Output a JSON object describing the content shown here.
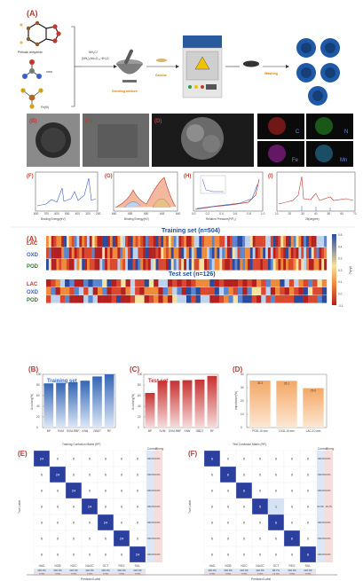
{
  "panelA": {
    "label": "(A)",
    "phthalic": "Phthalic anhydride",
    "urea": "urea",
    "fe": "Fe(III)",
    "reagent1": "NH₄Cl",
    "reagent2": "(NH₄)₆Mo₇O₂₄·4H₂O",
    "grinding": "Grinding mixture",
    "calcine": "Calcine",
    "washing": "Washing"
  },
  "panelsBD": {
    "b": "(B)",
    "c": "(C)",
    "d": "(D)"
  },
  "elements": {
    "c": "C",
    "n": "N",
    "fe": "Fe",
    "mn": "Mn"
  },
  "panelF": {
    "label": "(F)",
    "xlabel": "Binding Energy(eV)",
    "ylabel": "Intensity (a.u.)",
    "ticks": [
      "800",
      "700",
      "600",
      "500",
      "400",
      "300",
      "200"
    ]
  },
  "panelG": {
    "label": "(G)",
    "xlabel": "Binding Energy(eV)",
    "ylabel": "Intensity (a.u.)",
    "ticks": [
      "660",
      "655",
      "650",
      "645",
      "640"
    ]
  },
  "panelH": {
    "label": "(H)",
    "xlabel": "Relative Pressure(P/P₀)",
    "ylabel": "Pore volume(cm³/g)",
    "ticks": [
      "0.0",
      "0.2",
      "0.4",
      "0.6",
      "0.8",
      "1.0"
    ]
  },
  "panelI": {
    "label": "(I)",
    "xlabel": "2θ(degree)",
    "ylabel": "Intensity (a.u.)",
    "ticks": [
      "10",
      "20",
      "30",
      "40",
      "50",
      "60",
      "70"
    ]
  },
  "heatmap": {
    "label": "(A)",
    "train_title": "Training set (n=504)",
    "test_title": "Test set (n=126)",
    "rows": [
      "LAC",
      "OXD",
      "POD"
    ],
    "colorbar_label": "(A-A₀)",
    "colorbar_ticks": [
      "0.5",
      "0.4",
      "0.3",
      "0.2",
      "0.1",
      "0.0",
      "-0.1"
    ]
  },
  "chart_data": [
    {
      "type": "bar",
      "panel": "(B)",
      "title": "Training set",
      "ylabel": "Accuracy(%)",
      "categories": [
        "BP",
        "SVM",
        "SVM-RBF",
        "KNN",
        "GBDT",
        "RF"
      ],
      "values": [
        83,
        84,
        85,
        88,
        96,
        100
      ],
      "ylim": [
        0,
        100
      ],
      "yticks": [
        "0",
        "20",
        "40",
        "60",
        "80",
        "100"
      ]
    },
    {
      "type": "bar",
      "panel": "(C)",
      "title": "Test set",
      "ylabel": "Accuracy(%)",
      "categories": [
        "BP",
        "SVM",
        "SVM-RBF",
        "KNN",
        "GBDT",
        "RF"
      ],
      "values": [
        65,
        88,
        88,
        89,
        90,
        97
      ],
      "ylim": [
        0,
        100
      ],
      "yticks": [
        "0",
        "20",
        "40",
        "60",
        "80",
        "100"
      ]
    },
    {
      "type": "bar",
      "panel": "(D)",
      "ylabel": "Importance(%)",
      "categories": [
        "POD-10 min",
        "OXD-10 min",
        "LAC-10 min"
      ],
      "values": [
        35.3,
        35.1,
        29.6
      ],
      "labels": [
        "35.3",
        "35.1",
        "29.6"
      ],
      "ylim": [
        0,
        40
      ],
      "yticks": [
        "0",
        "10",
        "20",
        "30",
        "40"
      ]
    },
    {
      "type": "heatmap",
      "panel": "(E)",
      "title": "Training Confusion Matrix (RF)",
      "classes": [
        "HAD",
        "NOB",
        "NOC",
        "NAOC",
        "OCT",
        "REG",
        "SUL"
      ],
      "matrix": [
        [
          24,
          0,
          0,
          0,
          0,
          0,
          0
        ],
        [
          0,
          24,
          0,
          0,
          0,
          0,
          0
        ],
        [
          0,
          0,
          24,
          0,
          0,
          0,
          0
        ],
        [
          0,
          0,
          0,
          24,
          0,
          0,
          0
        ],
        [
          0,
          0,
          0,
          0,
          24,
          0,
          0
        ],
        [
          0,
          0,
          0,
          0,
          0,
          24,
          0
        ],
        [
          0,
          0,
          0,
          0,
          0,
          0,
          24
        ]
      ],
      "row_stats": [
        "100.0%",
        "100.0%",
        "100.0%",
        "100.0%",
        "100.0%",
        "100.0%",
        "100.0%"
      ],
      "row_err": [
        "0.0%",
        "0.0%",
        "0.0%",
        "0.0%",
        "0.0%",
        "0.0%",
        "0.0%"
      ],
      "col_stats": [
        "100.0%",
        "100.0%",
        "100.0%",
        "100.0%",
        "100.0%",
        "100.0%",
        "100.0%"
      ],
      "col_err": [
        "0.0%",
        "0.0%",
        "0.0%",
        "0.0%",
        "0.0%",
        "0.0%",
        "0.0%"
      ],
      "header": [
        "Correct",
        "Wrong"
      ]
    },
    {
      "type": "heatmap",
      "panel": "(F)",
      "title": "Test Confusion Matrix (RF)",
      "classes": [
        "HAD",
        "NOB",
        "NOC",
        "NAOC",
        "OCT",
        "REG",
        "SUL"
      ],
      "matrix": [
        [
          6,
          0,
          0,
          0,
          0,
          0,
          0
        ],
        [
          0,
          6,
          0,
          0,
          0,
          0,
          0
        ],
        [
          0,
          0,
          6,
          0,
          0,
          0,
          0
        ],
        [
          0,
          0,
          0,
          5,
          1,
          0,
          0
        ],
        [
          0,
          0,
          0,
          0,
          6,
          0,
          0
        ],
        [
          0,
          0,
          0,
          0,
          0,
          6,
          0
        ],
        [
          0,
          0,
          0,
          0,
          0,
          0,
          6
        ]
      ],
      "row_stats": [
        "100.0%",
        "100.0%",
        "100.0%",
        "83.3%",
        "100.0%",
        "100.0%",
        "100.0%"
      ],
      "row_err": [
        "0.0%",
        "0.0%",
        "0.0%",
        "16.7%",
        "0.0%",
        "0.0%",
        "0.0%"
      ],
      "col_stats": [
        "100.0%",
        "100.0%",
        "100.0%",
        "100.0%",
        "85.7%",
        "100.0%",
        "100.0%"
      ],
      "col_err": [
        "0.0%",
        "0.0%",
        "0.0%",
        "0.0%",
        "14.3%",
        "0.0%",
        "0.0%"
      ],
      "header": [
        "Correct",
        "Wrong"
      ]
    }
  ],
  "labels": {
    "e": "(E)",
    "f": "(F)",
    "true_label": "True Label",
    "pred_label": "Predicted Label"
  }
}
